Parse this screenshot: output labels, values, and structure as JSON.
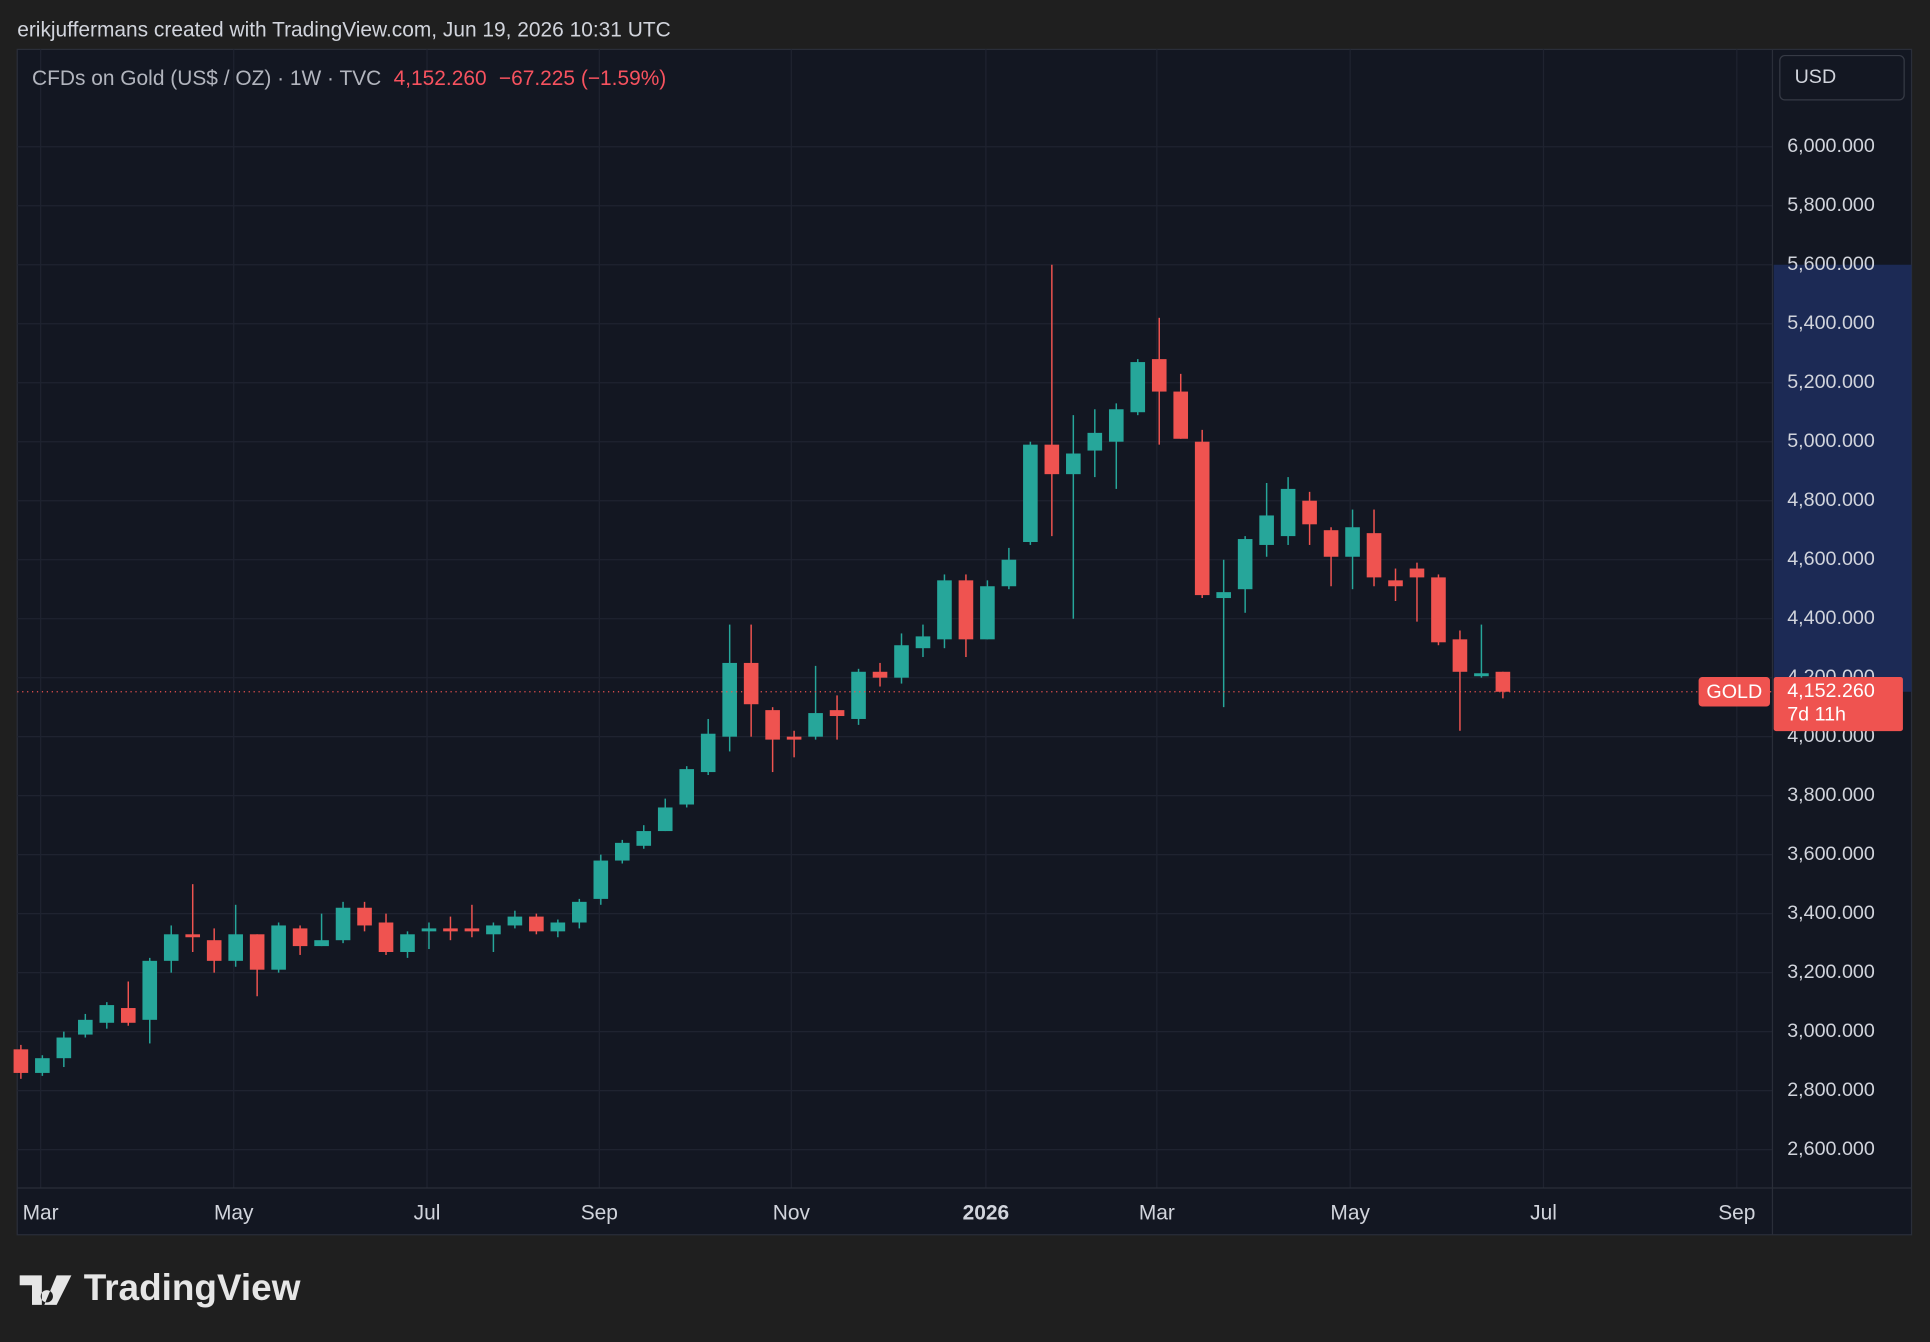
{
  "header": {
    "attribution": "erikjuffermans created with TradingView.com, Jun 19, 2026 10:31 UTC",
    "currency": "USD",
    "brand": "TradingView"
  },
  "chart_data": {
    "type": "candlestick",
    "title": "CFDs on Gold (US$ / OZ) · 1W · TVC",
    "last_price": {
      "value": 4152.26,
      "label": "4,152.260"
    },
    "change": "−67.225 (−1.59%)",
    "symbol": "GOLD",
    "countdown": "7d 11h",
    "up_color": "#26a69a",
    "down_color": "#ef5350",
    "open": [
      2940,
      2860,
      2910,
      2990,
      3030,
      3080,
      3040,
      3240,
      3330,
      3310,
      3240,
      3330,
      3210,
      3350,
      3290,
      3310,
      3420,
      3370,
      3270,
      3340,
      3350,
      3350,
      3330,
      3360,
      3390,
      3340,
      3370,
      3450,
      3580,
      3630,
      3680,
      3770,
      3880,
      4000,
      4250,
      4090,
      4000,
      4000,
      4090,
      4060,
      4220,
      4200,
      4300,
      4330,
      4530,
      4330,
      4510,
      4660,
      4990,
      4890,
      4970,
      5000,
      5100,
      5280,
      5170,
      5000,
      4470,
      4500,
      4650,
      4680,
      4800,
      4700,
      4610,
      4690,
      4530,
      4570,
      4540,
      4330,
      4205,
      4220
    ],
    "high": [
      2955,
      2920,
      3000,
      3060,
      3100,
      3170,
      3250,
      3360,
      3500,
      3350,
      3430,
      3330,
      3370,
      3360,
      3400,
      3440,
      3440,
      3400,
      3340,
      3370,
      3390,
      3430,
      3370,
      3410,
      3400,
      3380,
      3450,
      3600,
      3650,
      3700,
      3790,
      3900,
      4060,
      4380,
      4380,
      4100,
      4020,
      4240,
      4140,
      4230,
      4250,
      4350,
      4380,
      4550,
      4550,
      4530,
      4640,
      5000,
      5600,
      5090,
      5110,
      5130,
      5280,
      5420,
      5230,
      5040,
      4600,
      4680,
      4860,
      4880,
      4830,
      4710,
      4770,
      4770,
      4570,
      4590,
      4550,
      4360,
      4380,
      4220
    ],
    "low": [
      2840,
      2850,
      2880,
      2980,
      3010,
      3020,
      2960,
      3200,
      3270,
      3200,
      3220,
      3120,
      3200,
      3260,
      3290,
      3300,
      3340,
      3260,
      3250,
      3280,
      3310,
      3320,
      3270,
      3350,
      3330,
      3320,
      3350,
      3430,
      3570,
      3620,
      3680,
      3760,
      3870,
      3950,
      4000,
      3880,
      3930,
      3990,
      3990,
      4040,
      4170,
      4180,
      4270,
      4300,
      4270,
      4330,
      4500,
      4650,
      4680,
      4400,
      4880,
      4840,
      5090,
      4990,
      5010,
      4470,
      4100,
      4420,
      4610,
      4650,
      4650,
      4510,
      4500,
      4510,
      4460,
      4390,
      4310,
      4020,
      4200,
      4130
    ],
    "close": [
      2860,
      2910,
      2980,
      3040,
      3090,
      3030,
      3240,
      3330,
      3320,
      3240,
      3330,
      3210,
      3360,
      3290,
      3310,
      3420,
      3360,
      3270,
      3330,
      3350,
      3340,
      3340,
      3360,
      3390,
      3340,
      3370,
      3440,
      3580,
      3640,
      3680,
      3760,
      3890,
      4010,
      4250,
      4110,
      3990,
      3990,
      4080,
      4070,
      4220,
      4200,
      4310,
      4340,
      4530,
      4330,
      4510,
      4600,
      4990,
      4890,
      4960,
      5030,
      5110,
      5270,
      5170,
      5010,
      4480,
      4490,
      4670,
      4750,
      4840,
      4720,
      4610,
      4710,
      4540,
      4510,
      4540,
      4320,
      4220,
      4215,
      4152.26
    ],
    "xlim": [
      -0.17,
      81.55
    ],
    "xticks": [
      {
        "value": 0.92,
        "label": "Mar"
      },
      {
        "value": 9.91,
        "label": "May"
      },
      {
        "value": 18.91,
        "label": "Jul"
      },
      {
        "value": 26.93,
        "label": "Sep"
      },
      {
        "value": 35.87,
        "label": "Nov"
      },
      {
        "value": 44.93,
        "label": "2026"
      },
      {
        "value": 52.89,
        "label": "Mar"
      },
      {
        "value": 61.89,
        "label": "May"
      },
      {
        "value": 70.89,
        "label": "Jul"
      },
      {
        "value": 79.89,
        "label": "Sep"
      }
    ],
    "ylim": [
      2470,
      6330
    ],
    "yticks": [
      {
        "value": 2600,
        "label": "2,600.000"
      },
      {
        "value": 2800,
        "label": "2,800.000"
      },
      {
        "value": 3000,
        "label": "3,000.000"
      },
      {
        "value": 3200,
        "label": "3,200.000"
      },
      {
        "value": 3400,
        "label": "3,400.000"
      },
      {
        "value": 3600,
        "label": "3,600.000"
      },
      {
        "value": 3800,
        "label": "3,800.000"
      },
      {
        "value": 4000,
        "label": "4,000.000"
      },
      {
        "value": 4200,
        "label": "4,200.000"
      },
      {
        "value": 4400,
        "label": "4,400.000"
      },
      {
        "value": 4600,
        "label": "4,600.000"
      },
      {
        "value": 4800,
        "label": "4,800.000"
      },
      {
        "value": 5000,
        "label": "5,000.000"
      },
      {
        "value": 5200,
        "label": "5,200.000"
      },
      {
        "value": 5400,
        "label": "5,400.000"
      },
      {
        "value": 5600,
        "label": "5,600.000"
      },
      {
        "value": 5800,
        "label": "5,800.000"
      },
      {
        "value": 6000,
        "label": "6,000.000"
      }
    ],
    "grid": true
  }
}
